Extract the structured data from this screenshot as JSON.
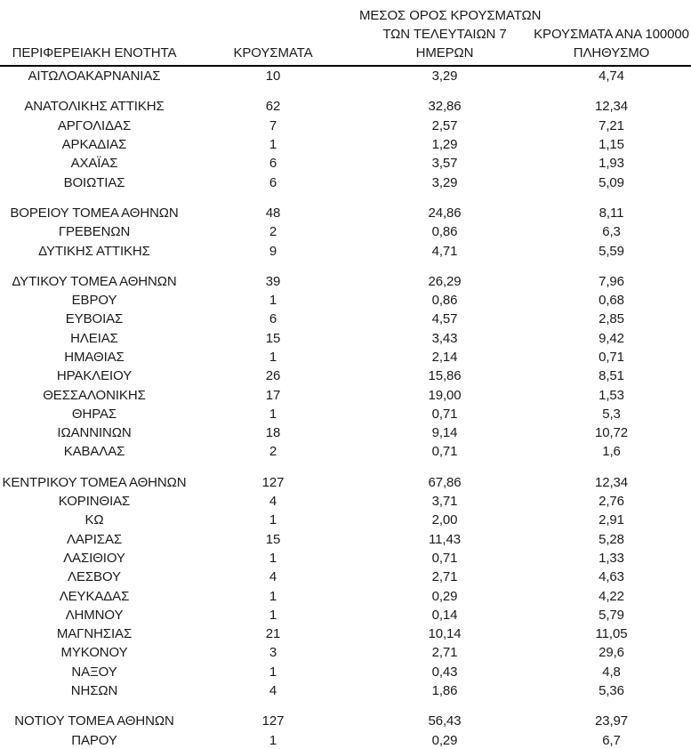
{
  "page": {
    "background_color": "#ffffff",
    "text_color": "#1b1b1b",
    "header_rule_color": "#000000"
  },
  "table": {
    "headers": [
      {
        "name": "region",
        "lines": [
          "ΠΕΡΙΦΕΡΕΙΑΚΗ ΕΝΟΤΗΤΑ"
        ]
      },
      {
        "name": "cases",
        "lines": [
          "ΚΡΟΥΣΜΑΤΑ"
        ]
      },
      {
        "name": "avg7",
        "lines": [
          "ΜΕΣΟΣ ΟΡΟΣ ΚΡΟΥΣΜΑΤΩΝ",
          "ΤΩΝ ΤΕΛΕΥΤΑΙΩΝ 7",
          "ΗΜΕΡΩΝ"
        ]
      },
      {
        "name": "per100k",
        "lines": [
          "ΚΡΟΥΣΜΑΤΑ ΑΝΑ 100000",
          "ΠΛΗΘΥΣΜΟ"
        ]
      }
    ],
    "gap_before_regions": [
      "ΑΝΑΤΟΛΙΚΗΣ ΑΤΤΙΚΗΣ",
      "ΒΟΡΕΙΟΥ ΤΟΜΕΑ ΑΘΗΝΩΝ",
      "ΔΥΤΙΚΟΥ ΤΟΜΕΑ ΑΘΗΝΩΝ",
      "ΚΕΝΤΡΙΚΟΥ ΤΟΜΕΑ ΑΘΗΝΩΝ",
      "ΝΟΤΙΟΥ ΤΟΜΕΑ ΑΘΗΝΩΝ"
    ]
  },
  "chart_data": {
    "type": "table",
    "columns": [
      "ΠΕΡΙΦΕΡΕΙΑΚΗ ΕΝΟΤΗΤΑ",
      "ΚΡΟΥΣΜΑΤΑ",
      "ΜΕΣΟΣ ΟΡΟΣ ΚΡΟΥΣΜΑΤΩΝ ΤΩΝ ΤΕΛΕΥΤΑΙΩΝ 7 ΗΜΕΡΩΝ",
      "ΚΡΟΥΣΜΑΤΑ ΑΝΑ 100000 ΠΛΗΘΥΣΜΟ"
    ],
    "rows": [
      [
        "ΑΙΤΩΛΟΑΚΑΡΝΑΝΙΑΣ",
        "10",
        "3,29",
        "4,74"
      ],
      [
        "ΑΝΑΤΟΛΙΚΗΣ ΑΤΤΙΚΗΣ",
        "62",
        "32,86",
        "12,34"
      ],
      [
        "ΑΡΓΟΛΙΔΑΣ",
        "7",
        "2,57",
        "7,21"
      ],
      [
        "ΑΡΚΑΔΙΑΣ",
        "1",
        "1,29",
        "1,15"
      ],
      [
        "ΑΧΑΪΑΣ",
        "6",
        "3,57",
        "1,93"
      ],
      [
        "ΒΟΙΩΤΙΑΣ",
        "6",
        "3,29",
        "5,09"
      ],
      [
        "ΒΟΡΕΙΟΥ ΤΟΜΕΑ ΑΘΗΝΩΝ",
        "48",
        "24,86",
        "8,11"
      ],
      [
        "ΓΡΕΒΕΝΩΝ",
        "2",
        "0,86",
        "6,3"
      ],
      [
        "ΔΥΤΙΚΗΣ ΑΤΤΙΚΗΣ",
        "9",
        "4,71",
        "5,59"
      ],
      [
        "ΔΥΤΙΚΟΥ ΤΟΜΕΑ ΑΘΗΝΩΝ",
        "39",
        "26,29",
        "7,96"
      ],
      [
        "ΕΒΡΟΥ",
        "1",
        "0,86",
        "0,68"
      ],
      [
        "ΕΥΒΟΙΑΣ",
        "6",
        "4,57",
        "2,85"
      ],
      [
        "ΗΛΕΙΑΣ",
        "15",
        "3,43",
        "9,42"
      ],
      [
        "ΗΜΑΘΙΑΣ",
        "1",
        "2,14",
        "0,71"
      ],
      [
        "ΗΡΑΚΛΕΙΟΥ",
        "26",
        "15,86",
        "8,51"
      ],
      [
        "ΘΕΣΣΑΛΟΝΙΚΗΣ",
        "17",
        "19,00",
        "1,53"
      ],
      [
        "ΘΗΡΑΣ",
        "1",
        "0,71",
        "5,3"
      ],
      [
        "ΙΩΑΝΝΙΝΩΝ",
        "18",
        "9,14",
        "10,72"
      ],
      [
        "ΚΑΒΑΛΑΣ",
        "2",
        "0,71",
        "1,6"
      ],
      [
        "ΚΕΝΤΡΙΚΟΥ ΤΟΜΕΑ ΑΘΗΝΩΝ",
        "127",
        "67,86",
        "12,34"
      ],
      [
        "ΚΟΡΙΝΘΙΑΣ",
        "4",
        "3,71",
        "2,76"
      ],
      [
        "ΚΩ",
        "1",
        "2,00",
        "2,91"
      ],
      [
        "ΛΑΡΙΣΑΣ",
        "15",
        "11,43",
        "5,28"
      ],
      [
        "ΛΑΣΙΘΙΟΥ",
        "1",
        "0,71",
        "1,33"
      ],
      [
        "ΛΕΣΒΟΥ",
        "4",
        "2,71",
        "4,63"
      ],
      [
        "ΛΕΥΚΑΔΑΣ",
        "1",
        "0,29",
        "4,22"
      ],
      [
        "ΛΗΜΝΟΥ",
        "1",
        "0,14",
        "5,79"
      ],
      [
        "ΜΑΓΝΗΣΙΑΣ",
        "21",
        "10,14",
        "11,05"
      ],
      [
        "ΜΥΚΟΝΟΥ",
        "3",
        "2,71",
        "29,6"
      ],
      [
        "ΝΑΞΟΥ",
        "1",
        "0,43",
        "4,8"
      ],
      [
        "ΝΗΣΩΝ",
        "4",
        "1,86",
        "5,36"
      ],
      [
        "ΝΟΤΙΟΥ ΤΟΜΕΑ ΑΘΗΝΩΝ",
        "127",
        "56,43",
        "23,97"
      ],
      [
        "ΠΑΡΟΥ",
        "1",
        "0,29",
        "6,7"
      ]
    ]
  }
}
